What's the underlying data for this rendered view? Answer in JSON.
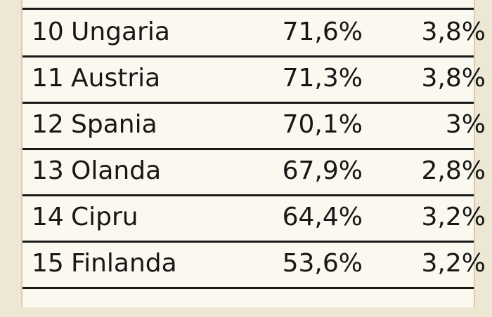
{
  "table": {
    "rows": [
      {
        "rank": "10",
        "country": "Ungaria",
        "value1": "71,6%",
        "value2": "3,8%"
      },
      {
        "rank": "11",
        "country": "Austria",
        "value1": "71,3%",
        "value2": "3,8%"
      },
      {
        "rank": "12",
        "country": "Spania",
        "value1": "70,1%",
        "value2": "3%"
      },
      {
        "rank": "13",
        "country": "Olanda",
        "value1": "67,9%",
        "value2": "2,8%"
      },
      {
        "rank": "14",
        "country": "Cipru",
        "value1": "64,4%",
        "value2": "3,2%"
      },
      {
        "rank": "15",
        "country": "Finlanda",
        "value1": "53,6%",
        "value2": "3,2%"
      }
    ]
  }
}
